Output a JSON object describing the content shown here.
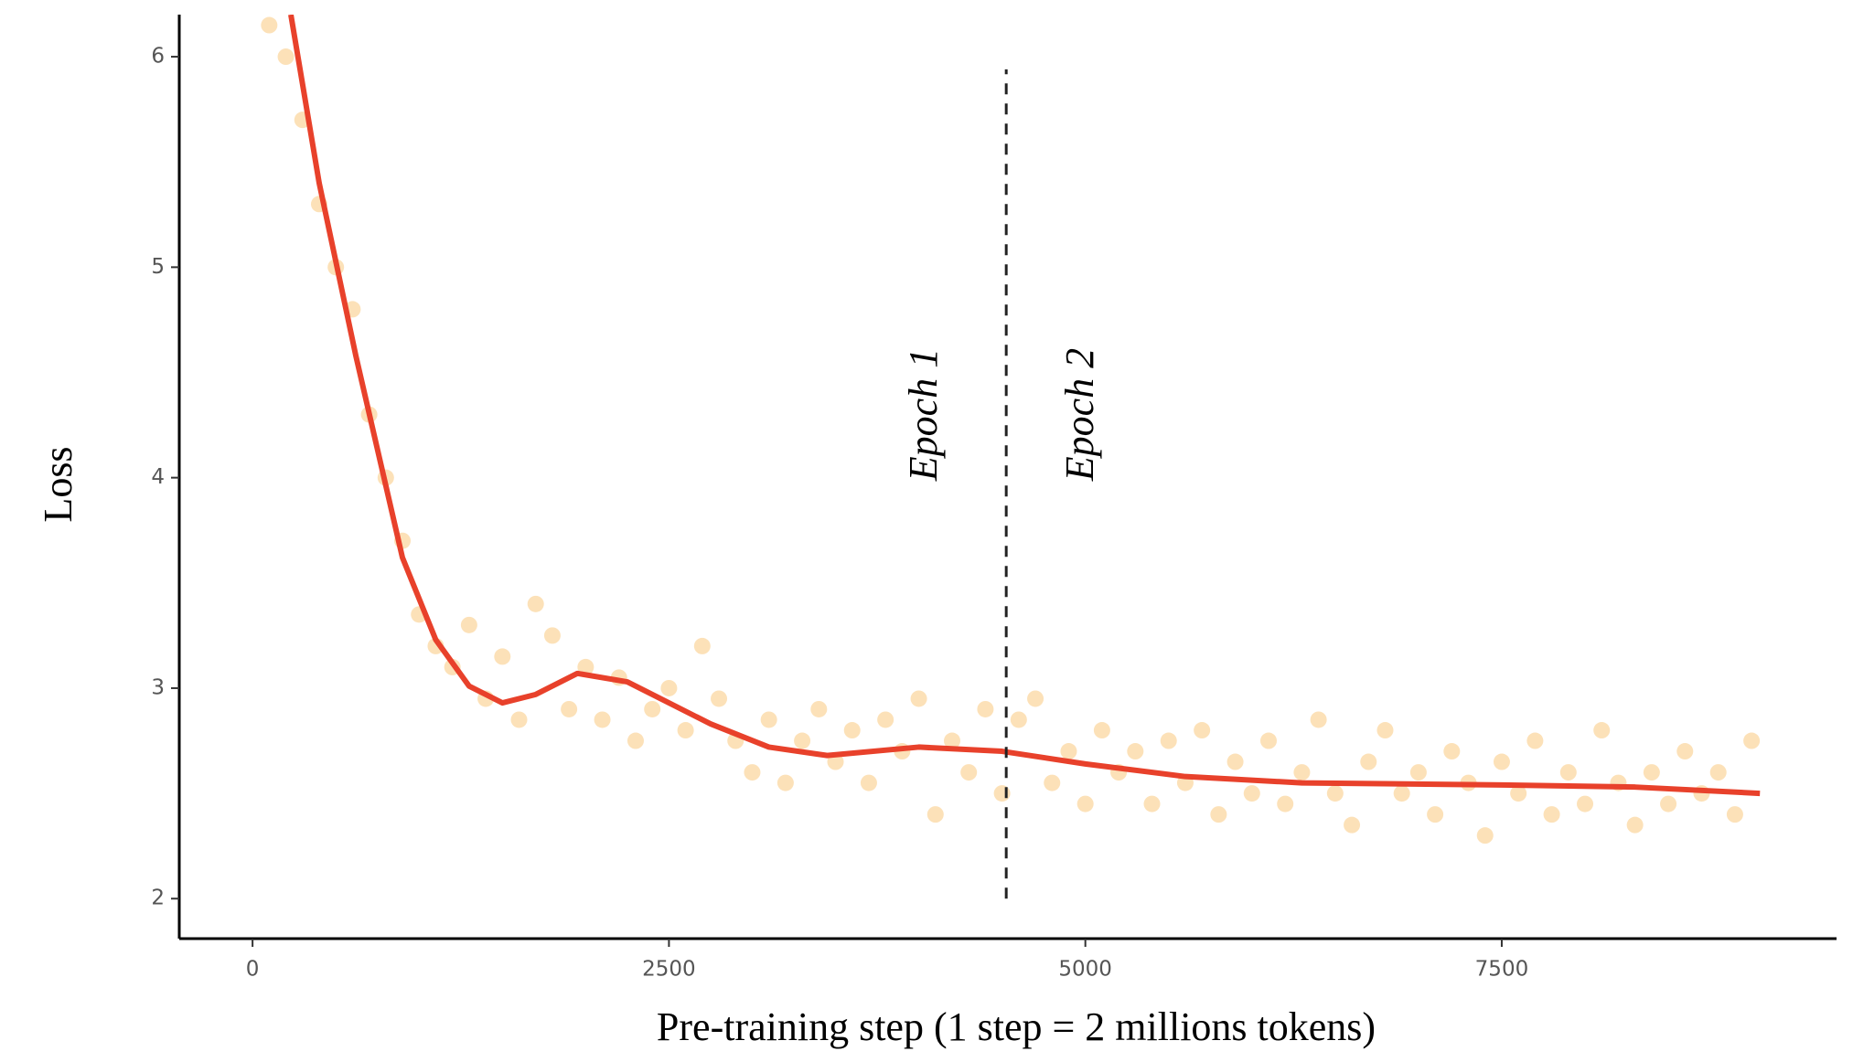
{
  "chart_data": {
    "type": "scatter",
    "xlabel": "Pre-training step (1 step = 2 millions tokens)",
    "ylabel": "Loss",
    "xlim": [
      -440,
      9510
    ],
    "ylim": [
      1.81,
      6.2
    ],
    "xticks": [
      0,
      2500,
      5000,
      7500
    ],
    "yticks": [
      2,
      3,
      4,
      5,
      6
    ],
    "series": [
      {
        "type": "scatter",
        "color": "#f5a833",
        "x": [
          100,
          200,
          300,
          400,
          500,
          600,
          700,
          800,
          900,
          1000,
          1100,
          1200,
          1300,
          1400,
          1500,
          1600,
          1700,
          1800,
          1900,
          2000,
          2100,
          2200,
          2300,
          2400,
          2500,
          2600,
          2700,
          2800,
          2900,
          3000,
          3100,
          3200,
          3300,
          3400,
          3500,
          3600,
          3700,
          3800,
          3900,
          4000,
          4100,
          4200,
          4300,
          4400,
          4500,
          4600,
          4700,
          4800,
          4900,
          5000,
          5100,
          5200,
          5300,
          5400,
          5500,
          5600,
          5700,
          5800,
          5900,
          6000,
          6100,
          6200,
          6300,
          6400,
          6500,
          6600,
          6700,
          6800,
          6900,
          7000,
          7100,
          7200,
          7300,
          7400,
          7500,
          7600,
          7700,
          7800,
          7900,
          8000,
          8100,
          8200,
          8300,
          8400,
          8500,
          8600,
          8700,
          8800,
          8900,
          9000
        ],
        "values": [
          6.15,
          6.0,
          5.7,
          5.3,
          5.0,
          4.8,
          4.3,
          4.0,
          3.7,
          3.35,
          3.2,
          3.1,
          3.3,
          2.95,
          3.15,
          2.85,
          3.4,
          3.25,
          2.9,
          3.1,
          2.85,
          3.05,
          2.75,
          2.9,
          3.0,
          2.8,
          3.2,
          2.95,
          2.75,
          2.6,
          2.85,
          2.55,
          2.75,
          2.9,
          2.65,
          2.8,
          2.55,
          2.85,
          2.7,
          2.95,
          2.4,
          2.75,
          2.6,
          2.9,
          2.5,
          2.85,
          2.95,
          2.55,
          2.7,
          2.45,
          2.8,
          2.6,
          2.7,
          2.45,
          2.75,
          2.55,
          2.8,
          2.4,
          2.65,
          2.5,
          2.75,
          2.45,
          2.6,
          2.85,
          2.5,
          2.35,
          2.65,
          2.8,
          2.5,
          2.6,
          2.4,
          2.7,
          2.55,
          2.3,
          2.65,
          2.5,
          2.75,
          2.4,
          2.6,
          2.45,
          2.8,
          2.55,
          2.35,
          2.6,
          2.45,
          2.7,
          2.5,
          2.6,
          2.4,
          2.75
        ]
      },
      {
        "type": "line",
        "color": "#e8412b",
        "x": [
          230,
          400,
          620,
          900,
          1100,
          1300,
          1500,
          1700,
          1950,
          2250,
          2750,
          3100,
          3450,
          4000,
          4500,
          5000,
          5600,
          6300,
          7500,
          8300,
          9050
        ],
        "values": [
          6.2,
          5.4,
          4.58,
          3.62,
          3.23,
          3.01,
          2.93,
          2.97,
          3.07,
          3.03,
          2.83,
          2.72,
          2.68,
          2.72,
          2.7,
          2.64,
          2.58,
          2.55,
          2.54,
          2.53,
          2.5
        ]
      }
    ],
    "vline": {
      "x": 4525,
      "y": [
        2,
        5.94
      ]
    },
    "annotations": [
      {
        "text": "Epoch 1",
        "x": 4050,
        "y": 4.3
      },
      {
        "text": "Epoch 2",
        "x": 4990,
        "y": 4.3
      }
    ]
  }
}
